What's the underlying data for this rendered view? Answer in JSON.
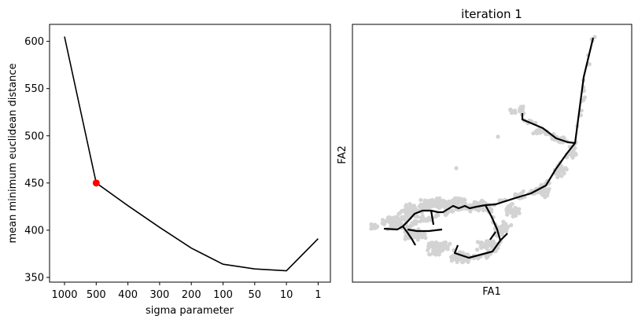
{
  "chart_data": [
    {
      "type": "line",
      "title": "",
      "xlabel": "sigma parameter",
      "ylabel": "mean minimum euclidean distance",
      "categories": [
        "1000",
        "500",
        "400",
        "300",
        "200",
        "100",
        "50",
        "10",
        "1"
      ],
      "values": [
        605,
        450,
        426,
        403,
        381,
        364,
        359,
        357,
        391
      ],
      "ylim": [
        345,
        618
      ],
      "yticks": [
        350,
        400,
        450,
        500,
        550,
        600
      ],
      "highlight": {
        "category": "500",
        "value": 450,
        "color": "#ff0000"
      },
      "line_color": "#000000",
      "grid": false
    },
    {
      "type": "scatter",
      "title": "iteration 1",
      "xlabel": "FA1",
      "ylabel": "FA2",
      "ticks_visible": false,
      "point_color": "#d3d3d3",
      "tree_color": "#000000",
      "grid": false
    }
  ]
}
